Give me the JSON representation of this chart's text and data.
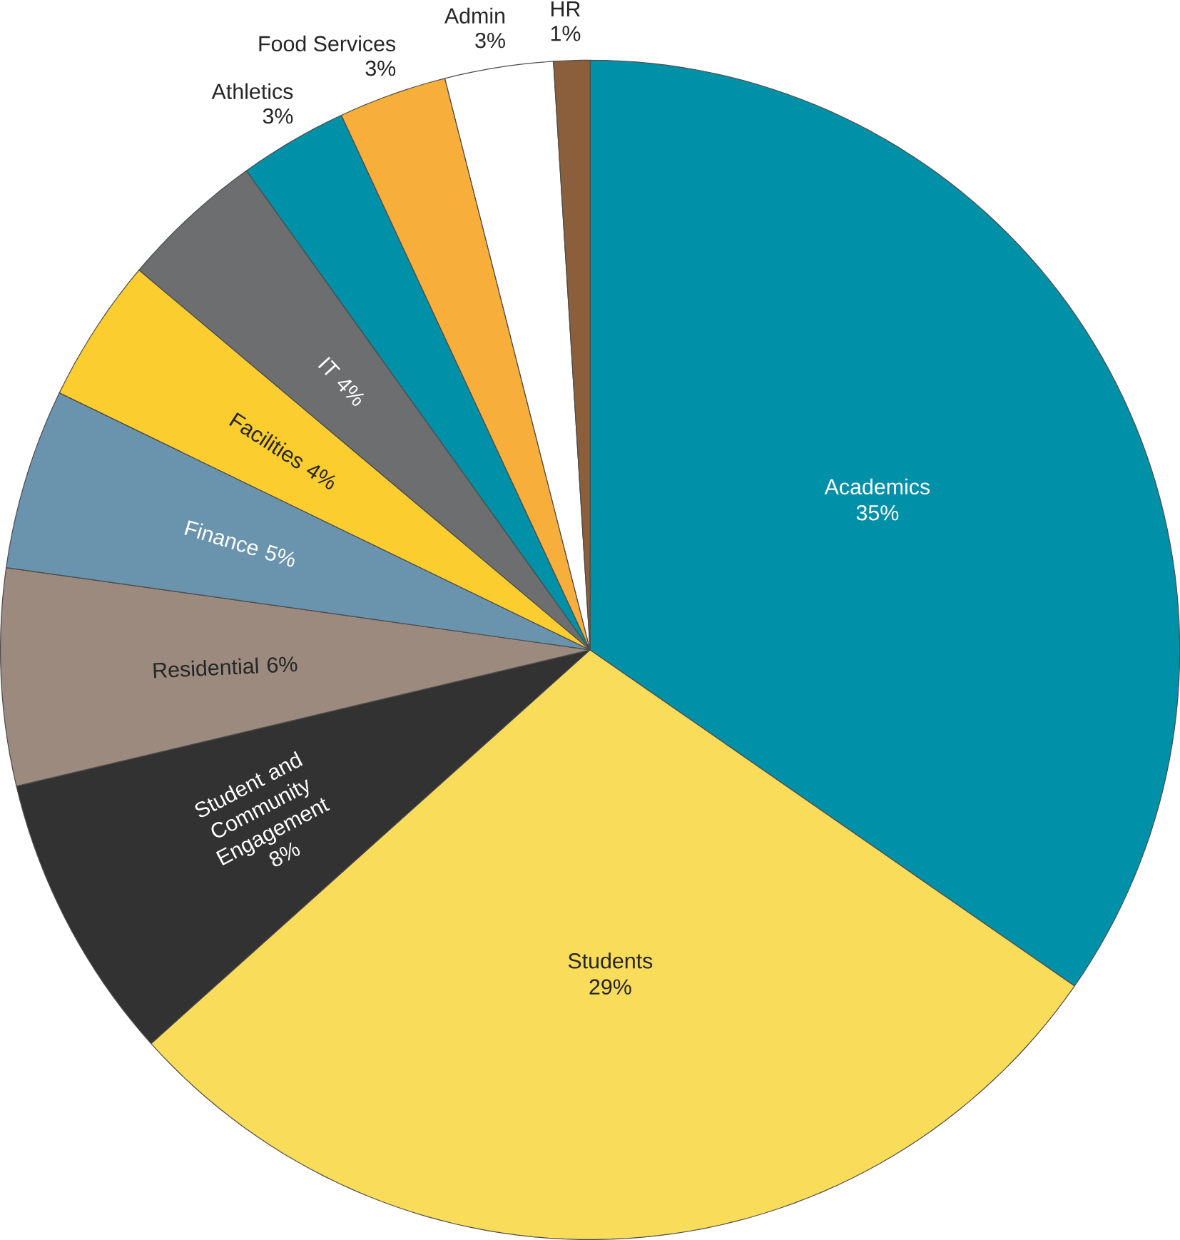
{
  "chart_data": {
    "type": "pie",
    "categories": [
      "Academics",
      "Students",
      "Student and Community Engagement",
      "Residential",
      "Finance",
      "Facilities",
      "IT",
      "Athletics",
      "Food Services",
      "Admin",
      "HR"
    ],
    "values": [
      35,
      29,
      8,
      6,
      5,
      4,
      4,
      3,
      3,
      3,
      1
    ],
    "value_labels": [
      "35%",
      "29%",
      "8%",
      "6%",
      "5%",
      "4%",
      "4%",
      "3%",
      "3%",
      "3%",
      "1%"
    ],
    "colors": [
      "#0090a8",
      "#f8dc5a",
      "#333233",
      "#9b8a7d",
      "#6a93ad",
      "#fccd2e",
      "#6d6e70",
      "#0090a8",
      "#f7ae3a",
      "#ffffff",
      "#8b5e3c"
    ]
  }
}
